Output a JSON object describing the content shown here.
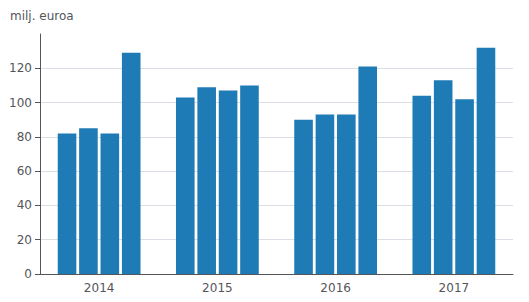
{
  "chart_data": {
    "type": "bar",
    "ylabel": "milj. euroa",
    "categories": [
      "2014",
      "2015",
      "2016",
      "2017"
    ],
    "series": [
      {
        "color": "#1f7bb5",
        "values": [
          82,
          103,
          90,
          104
        ]
      },
      {
        "color": "#1f7bb5",
        "values": [
          85,
          109,
          93,
          113
        ]
      },
      {
        "color": "#1f7bb5",
        "values": [
          82,
          107,
          93,
          102
        ]
      },
      {
        "color": "#1f7bb5",
        "values": [
          129,
          110,
          121,
          132
        ]
      }
    ],
    "ylim": [
      0,
      140
    ],
    "yticks": [
      0,
      20,
      40,
      60,
      80,
      100,
      120
    ],
    "grid": true
  }
}
